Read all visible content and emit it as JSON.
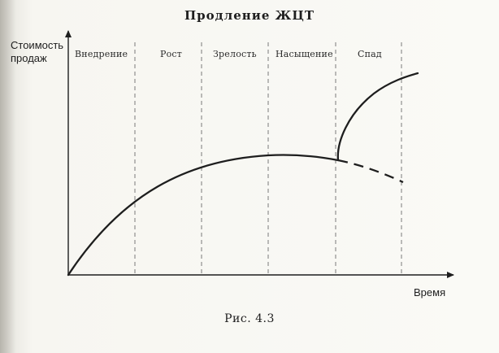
{
  "diagram": {
    "title": "Продление ЖЦТ",
    "y_axis_label": "Стоимость продаж",
    "x_axis_label": "Время",
    "stages": [
      "Внедрение",
      "Рост",
      "Зрелость",
      "Насыщение",
      "Спад"
    ],
    "caption": "Рис. 4.3",
    "curves": {
      "main": "lifecycle curve rising through introduction, growth and maturity to saturation",
      "extension": "renewed growth curve rising steeply after saturation",
      "projected_decline": "dashed continuation showing decline without extension"
    }
  },
  "colors": {
    "ink": "#1e1e1e",
    "paper": "#fafaf6",
    "dashed_divider": "#7a7a7a"
  }
}
